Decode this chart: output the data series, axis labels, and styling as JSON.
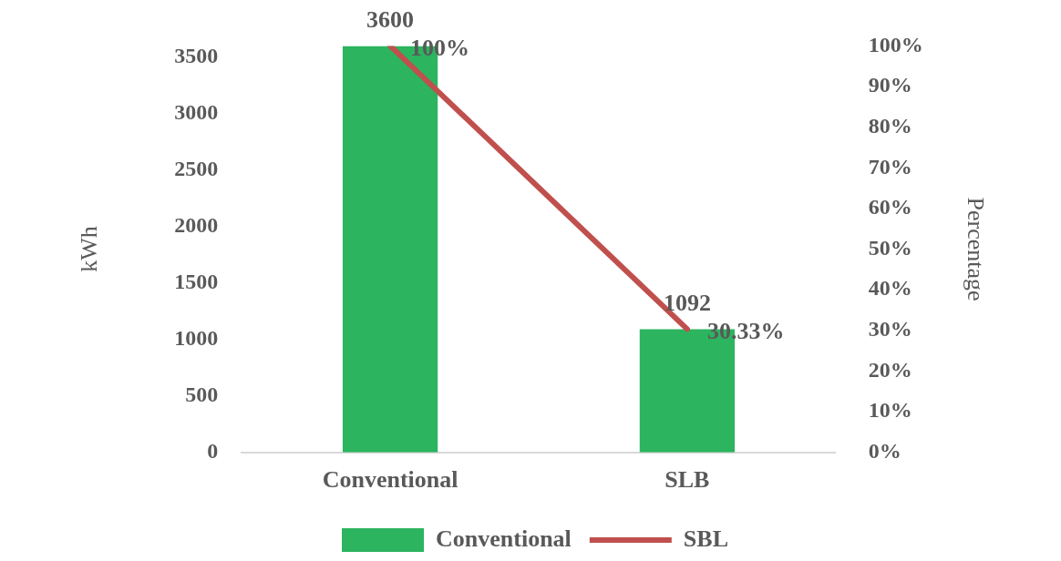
{
  "chart_data": {
    "type": "bar",
    "categories": [
      "Conventional",
      "SLB"
    ],
    "ylabel": "kWh",
    "y2label": "Percentage",
    "ylim": [
      0,
      3600
    ],
    "yticks": [
      0,
      500,
      1000,
      1500,
      2000,
      2500,
      3000,
      3500
    ],
    "y2lim": [
      0,
      100
    ],
    "y2ticks": [
      {
        "value": 0,
        "label": "0%"
      },
      {
        "value": 10,
        "label": "10%"
      },
      {
        "value": 20,
        "label": "20%"
      },
      {
        "value": 30,
        "label": "30%"
      },
      {
        "value": 40,
        "label": "40%"
      },
      {
        "value": 50,
        "label": "50%"
      },
      {
        "value": 60,
        "label": "60%"
      },
      {
        "value": 70,
        "label": "70%"
      },
      {
        "value": 80,
        "label": "80%"
      },
      {
        "value": 90,
        "label": "90%"
      },
      {
        "value": 100,
        "label": "100%"
      }
    ],
    "legend": "bottom",
    "grid": false,
    "series": [
      {
        "name": "Conventional",
        "color": "#2cb45f",
        "values": [
          3600,
          1092
        ],
        "value_labels": [
          "3600",
          "1092"
        ]
      },
      {
        "name": "SBL",
        "type": "line",
        "axis": "y2",
        "color": "#c0504d",
        "values": [
          100,
          30.33
        ],
        "value_labels": [
          "100%",
          "30.33%"
        ]
      }
    ]
  }
}
